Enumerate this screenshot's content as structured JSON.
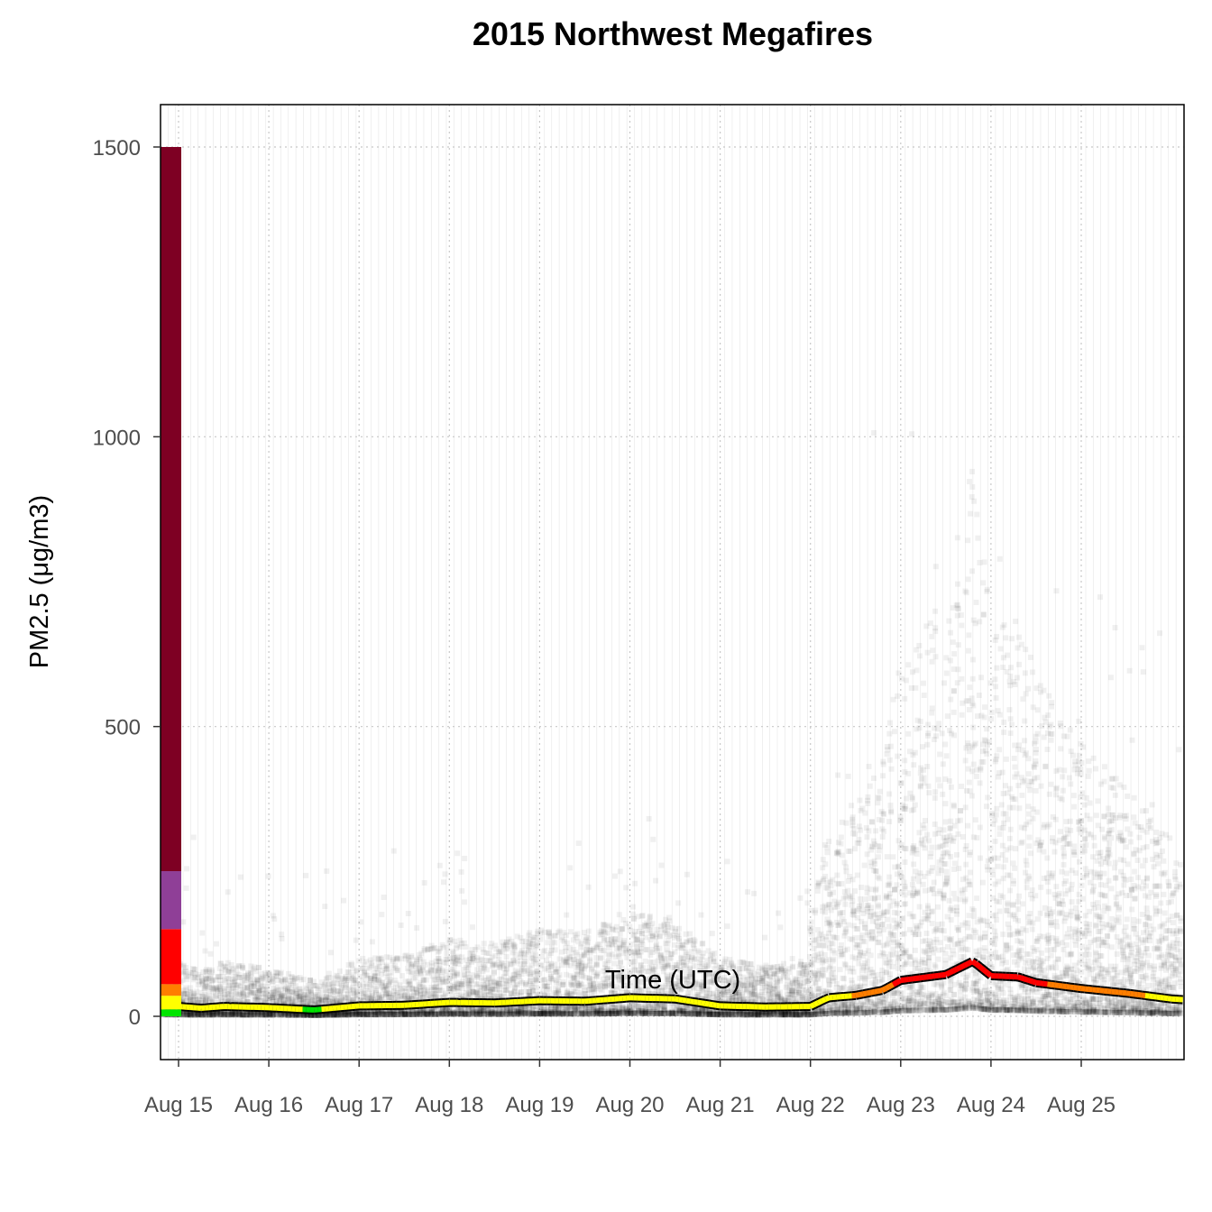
{
  "chart_data": {
    "type": "scatter",
    "title": "2015 Northwest Megafires",
    "xlabel": "Time (UTC)",
    "ylabel": "PM2.5 (μg/m3)",
    "x_tick_labels": [
      "Aug 15",
      "Aug 16",
      "Aug 17",
      "Aug 18",
      "Aug 19",
      "Aug 20",
      "Aug 21",
      "Aug 22",
      "Aug 23",
      "Aug 24",
      "Aug 25"
    ],
    "y_ticks": [
      0,
      500,
      1000,
      1500
    ],
    "xlim": [
      "2015-08-14 22:00",
      "2015-08-26 02:00"
    ],
    "ylim": [
      -75,
      1570
    ],
    "grid": true,
    "legend": "none",
    "aqi_bar": [
      {
        "from": 0,
        "to": 12,
        "color": "#00E400"
      },
      {
        "from": 12,
        "to": 35.5,
        "color": "#FFFF00"
      },
      {
        "from": 35.5,
        "to": 55.5,
        "color": "#FF7E00"
      },
      {
        "from": 55.5,
        "to": 150.5,
        "color": "#FF0000"
      },
      {
        "from": 150.5,
        "to": 250.5,
        "color": "#8F3F97"
      },
      {
        "from": 250.5,
        "to": 1500,
        "color": "#7E0023"
      }
    ],
    "series": [
      {
        "kind": "median_line",
        "day_offset": [
          0,
          0.25,
          0.5,
          1,
          1.5,
          2,
          2.5,
          3,
          3.5,
          4,
          4.5,
          5,
          5.5,
          6,
          6.5,
          7,
          7.2,
          7.5,
          7.8,
          8,
          8.5,
          8.8,
          9,
          9.3,
          9.5,
          10,
          10.5,
          11,
          11.2
        ],
        "values": [
          17,
          14,
          17,
          15,
          11,
          18,
          19,
          24,
          23,
          27,
          26,
          32,
          30,
          18,
          16,
          17,
          32,
          36,
          45,
          62,
          72,
          95,
          70,
          68,
          58,
          48,
          40,
          30,
          28
        ]
      },
      {
        "kind": "hourly_points",
        "note": "semi-transparent gray squares of hourly PM2.5 at each monitor",
        "count_per_hour": 40
      }
    ]
  }
}
